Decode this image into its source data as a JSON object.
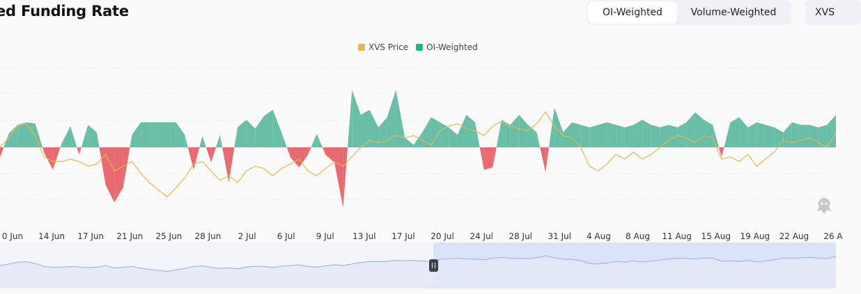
{
  "header": {
    "title": "ed Funding Rate",
    "toggle": [
      {
        "label": "OI-Weighted",
        "active": true
      },
      {
        "label": "Volume-Weighted",
        "active": false
      }
    ],
    "coin_label": "XVS"
  },
  "colors": {
    "price": "#e5b94f",
    "positive": "#69bea7",
    "negative": "#e76a70",
    "navigator_line": "#8fb0de",
    "navigator_fill": "#e3e9f6",
    "navigator_selected": "#dbe3f8"
  },
  "chart_data": {
    "type": "bar",
    "legend": [
      "XVS Price",
      "OI-Weighted"
    ],
    "legend_position": "top-center",
    "grid": true,
    "x_tick_labels": [
      "0 Jun",
      "14 Jun",
      "17 Jun",
      "21 Jun",
      "25 Jun",
      "28 Jun",
      "2 Jul",
      "6 Jul",
      "9 Jul",
      "13 Jul",
      "17 Jul",
      "20 Jul",
      "24 Jul",
      "28 Jul",
      "31 Jul",
      "4 Aug",
      "8 Aug",
      "11 Aug",
      "15 Aug",
      "19 Aug",
      "22 Aug",
      "26 A"
    ],
    "funding_rate_relative": [
      [
        0,
        -0.4
      ],
      [
        1,
        0.55
      ],
      [
        2,
        0.9
      ],
      [
        3,
        1.0
      ],
      [
        4,
        0.95
      ],
      [
        5,
        -0.2
      ],
      [
        6,
        -0.9
      ],
      [
        7,
        0.15
      ],
      [
        8,
        0.85
      ],
      [
        9,
        -0.3
      ],
      [
        10,
        0.9
      ],
      [
        11,
        0.6
      ],
      [
        12,
        -1.5
      ],
      [
        13,
        -2.2
      ],
      [
        14,
        -1.6
      ],
      [
        15,
        0.5
      ],
      [
        16,
        1.0
      ],
      [
        17,
        1.0
      ],
      [
        18,
        1.0
      ],
      [
        19,
        1.0
      ],
      [
        20,
        1.0
      ],
      [
        21,
        0.5
      ],
      [
        22,
        -0.9
      ],
      [
        23,
        0.45
      ],
      [
        24,
        -0.6
      ],
      [
        25,
        0.5
      ],
      [
        26,
        -1.4
      ],
      [
        27,
        0.8
      ],
      [
        28,
        1.1
      ],
      [
        29,
        0.75
      ],
      [
        30,
        1.25
      ],
      [
        31,
        1.5
      ],
      [
        32,
        0.6
      ],
      [
        33,
        -0.4
      ],
      [
        34,
        -0.8
      ],
      [
        35,
        -0.3
      ],
      [
        36,
        0.55
      ],
      [
        37,
        -0.3
      ],
      [
        38,
        -0.6
      ],
      [
        39,
        -2.4
      ],
      [
        40,
        2.3
      ],
      [
        41,
        1.3
      ],
      [
        42,
        1.5
      ],
      [
        43,
        0.8
      ],
      [
        44,
        1.2
      ],
      [
        45,
        2.3
      ],
      [
        46,
        0.4
      ],
      [
        47,
        0.1
      ],
      [
        48,
        0.6
      ],
      [
        49,
        1.2
      ],
      [
        50,
        1.0
      ],
      [
        51,
        0.8
      ],
      [
        52,
        0.5
      ],
      [
        53,
        1.3
      ],
      [
        54,
        1.0
      ],
      [
        55,
        -0.9
      ],
      [
        56,
        -0.8
      ],
      [
        57,
        1.1
      ],
      [
        58,
        0.9
      ],
      [
        59,
        1.3
      ],
      [
        60,
        0.9
      ],
      [
        61,
        0.6
      ],
      [
        62,
        -1.0
      ],
      [
        63,
        1.6
      ],
      [
        64,
        0.6
      ],
      [
        65,
        1.0
      ],
      [
        66,
        0.9
      ],
      [
        67,
        0.8
      ],
      [
        68,
        0.9
      ],
      [
        69,
        1.0
      ],
      [
        70,
        0.9
      ],
      [
        71,
        0.8
      ],
      [
        72,
        0.9
      ],
      [
        73,
        1.1
      ],
      [
        74,
        0.9
      ],
      [
        75,
        0.8
      ],
      [
        76,
        0.9
      ],
      [
        77,
        0.8
      ],
      [
        78,
        1.0
      ],
      [
        79,
        1.4
      ],
      [
        80,
        1.1
      ],
      [
        81,
        0.9
      ],
      [
        82,
        -0.4
      ],
      [
        83,
        1.0
      ],
      [
        84,
        1.2
      ],
      [
        85,
        0.8
      ],
      [
        86,
        1.0
      ],
      [
        87,
        0.9
      ],
      [
        88,
        0.8
      ],
      [
        89,
        0.6
      ],
      [
        90,
        1.0
      ],
      [
        91,
        0.9
      ],
      [
        92,
        0.9
      ],
      [
        93,
        0.8
      ],
      [
        94,
        0.9
      ],
      [
        95,
        1.3
      ]
    ],
    "price_relative": [
      [
        0,
        0.0
      ],
      [
        1,
        0.4
      ],
      [
        2,
        0.9
      ],
      [
        3,
        1.0
      ],
      [
        4,
        0.5
      ],
      [
        5,
        -0.4
      ],
      [
        6,
        -0.6
      ],
      [
        7,
        -0.6
      ],
      [
        8,
        -0.5
      ],
      [
        9,
        -0.6
      ],
      [
        10,
        -0.8
      ],
      [
        11,
        -0.7
      ],
      [
        12,
        -0.3
      ],
      [
        13,
        -1.0
      ],
      [
        14,
        -0.8
      ],
      [
        15,
        -0.6
      ],
      [
        16,
        -1.1
      ],
      [
        17,
        -1.5
      ],
      [
        18,
        -1.8
      ],
      [
        19,
        -2.1
      ],
      [
        20,
        -1.7
      ],
      [
        21,
        -1.3
      ],
      [
        22,
        -0.7
      ],
      [
        23,
        -0.6
      ],
      [
        24,
        -1.0
      ],
      [
        25,
        -1.4
      ],
      [
        26,
        -1.2
      ],
      [
        27,
        -1.5
      ],
      [
        28,
        -1.0
      ],
      [
        29,
        -0.8
      ],
      [
        30,
        -0.9
      ],
      [
        31,
        -1.2
      ],
      [
        32,
        -0.9
      ],
      [
        33,
        -0.7
      ],
      [
        34,
        -0.5
      ],
      [
        35,
        -1.0
      ],
      [
        36,
        -1.2
      ],
      [
        37,
        -0.9
      ],
      [
        38,
        -0.6
      ],
      [
        39,
        -0.8
      ],
      [
        40,
        -0.4
      ],
      [
        41,
        0.0
      ],
      [
        42,
        0.3
      ],
      [
        43,
        0.2
      ],
      [
        44,
        0.3
      ],
      [
        45,
        0.5
      ],
      [
        46,
        0.4
      ],
      [
        47,
        0.5
      ],
      [
        48,
        0.3
      ],
      [
        49,
        0.1
      ],
      [
        50,
        0.7
      ],
      [
        51,
        0.9
      ],
      [
        52,
        1.0
      ],
      [
        53,
        0.8
      ],
      [
        54,
        0.7
      ],
      [
        55,
        0.5
      ],
      [
        56,
        0.9
      ],
      [
        57,
        1.1
      ],
      [
        58,
        0.9
      ],
      [
        59,
        0.8
      ],
      [
        60,
        0.7
      ],
      [
        61,
        1.0
      ],
      [
        62,
        1.5
      ],
      [
        63,
        0.9
      ],
      [
        64,
        0.5
      ],
      [
        65,
        0.4
      ],
      [
        66,
        0.0
      ],
      [
        67,
        -0.8
      ],
      [
        68,
        -1.0
      ],
      [
        69,
        -0.7
      ],
      [
        70,
        -0.3
      ],
      [
        71,
        -0.5
      ],
      [
        72,
        -0.2
      ],
      [
        73,
        -0.5
      ],
      [
        74,
        -0.3
      ],
      [
        75,
        0.0
      ],
      [
        76,
        0.3
      ],
      [
        77,
        0.5
      ],
      [
        78,
        0.4
      ],
      [
        79,
        0.2
      ],
      [
        80,
        0.5
      ],
      [
        81,
        0.4
      ],
      [
        82,
        -0.5
      ],
      [
        83,
        -0.4
      ],
      [
        84,
        -0.6
      ],
      [
        85,
        -0.3
      ],
      [
        86,
        -0.8
      ],
      [
        87,
        -0.5
      ],
      [
        88,
        -0.2
      ],
      [
        89,
        0.3
      ],
      [
        90,
        0.2
      ],
      [
        91,
        0.3
      ],
      [
        92,
        0.4
      ],
      [
        93,
        0.2
      ],
      [
        94,
        0.0
      ],
      [
        95,
        0.6
      ]
    ]
  }
}
